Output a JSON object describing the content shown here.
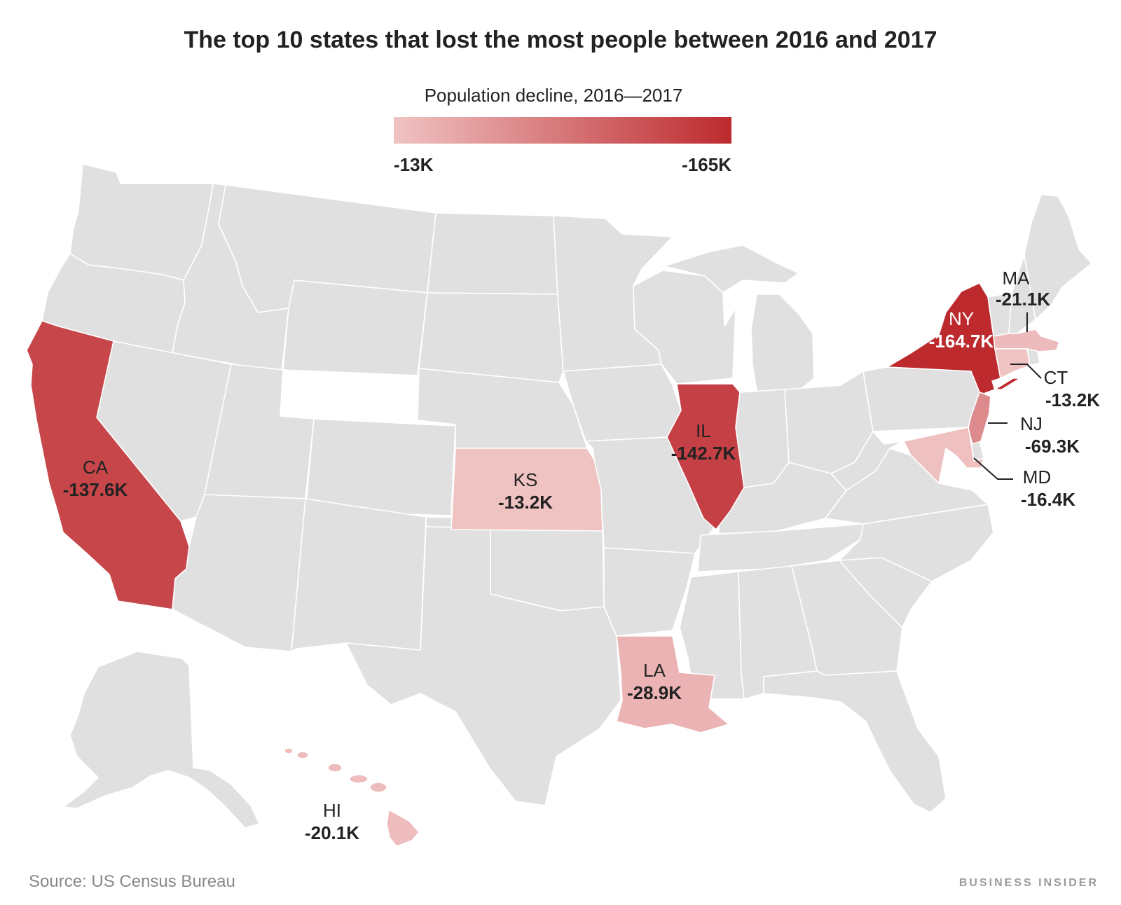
{
  "title": "The top 10 states that lost the most people between 2016 and 2017",
  "legend": {
    "title": "Population decline, 2016—2017",
    "min_label": "-13K",
    "max_label": "-165K",
    "min_value": -13,
    "max_value": -165,
    "unit": "thousand people",
    "color_low": "#f0c3c3",
    "color_high": "#bd2a2e"
  },
  "colors": {
    "land": "#e0e0e0",
    "border": "#ffffff"
  },
  "states": [
    {
      "abbr": "NY",
      "value": "-164.7K",
      "decline": 164.7
    },
    {
      "abbr": "IL",
      "value": "-142.7K",
      "decline": 142.7
    },
    {
      "abbr": "CA",
      "value": "-137.6K",
      "decline": 137.6
    },
    {
      "abbr": "NJ",
      "value": "-69.3K",
      "decline": 69.3
    },
    {
      "abbr": "LA",
      "value": "-28.9K",
      "decline": 28.9
    },
    {
      "abbr": "MA",
      "value": "-21.1K",
      "decline": 21.1
    },
    {
      "abbr": "HI",
      "value": "-20.1K",
      "decline": 20.1
    },
    {
      "abbr": "MD",
      "value": "-16.4K",
      "decline": 16.4
    },
    {
      "abbr": "KS",
      "value": "-13.2K",
      "decline": 13.2
    },
    {
      "abbr": "CT",
      "value": "-13.2K",
      "decline": 13.2
    }
  ],
  "source": "Source: US Census Bureau",
  "brand": "BUSINESS INSIDER"
}
